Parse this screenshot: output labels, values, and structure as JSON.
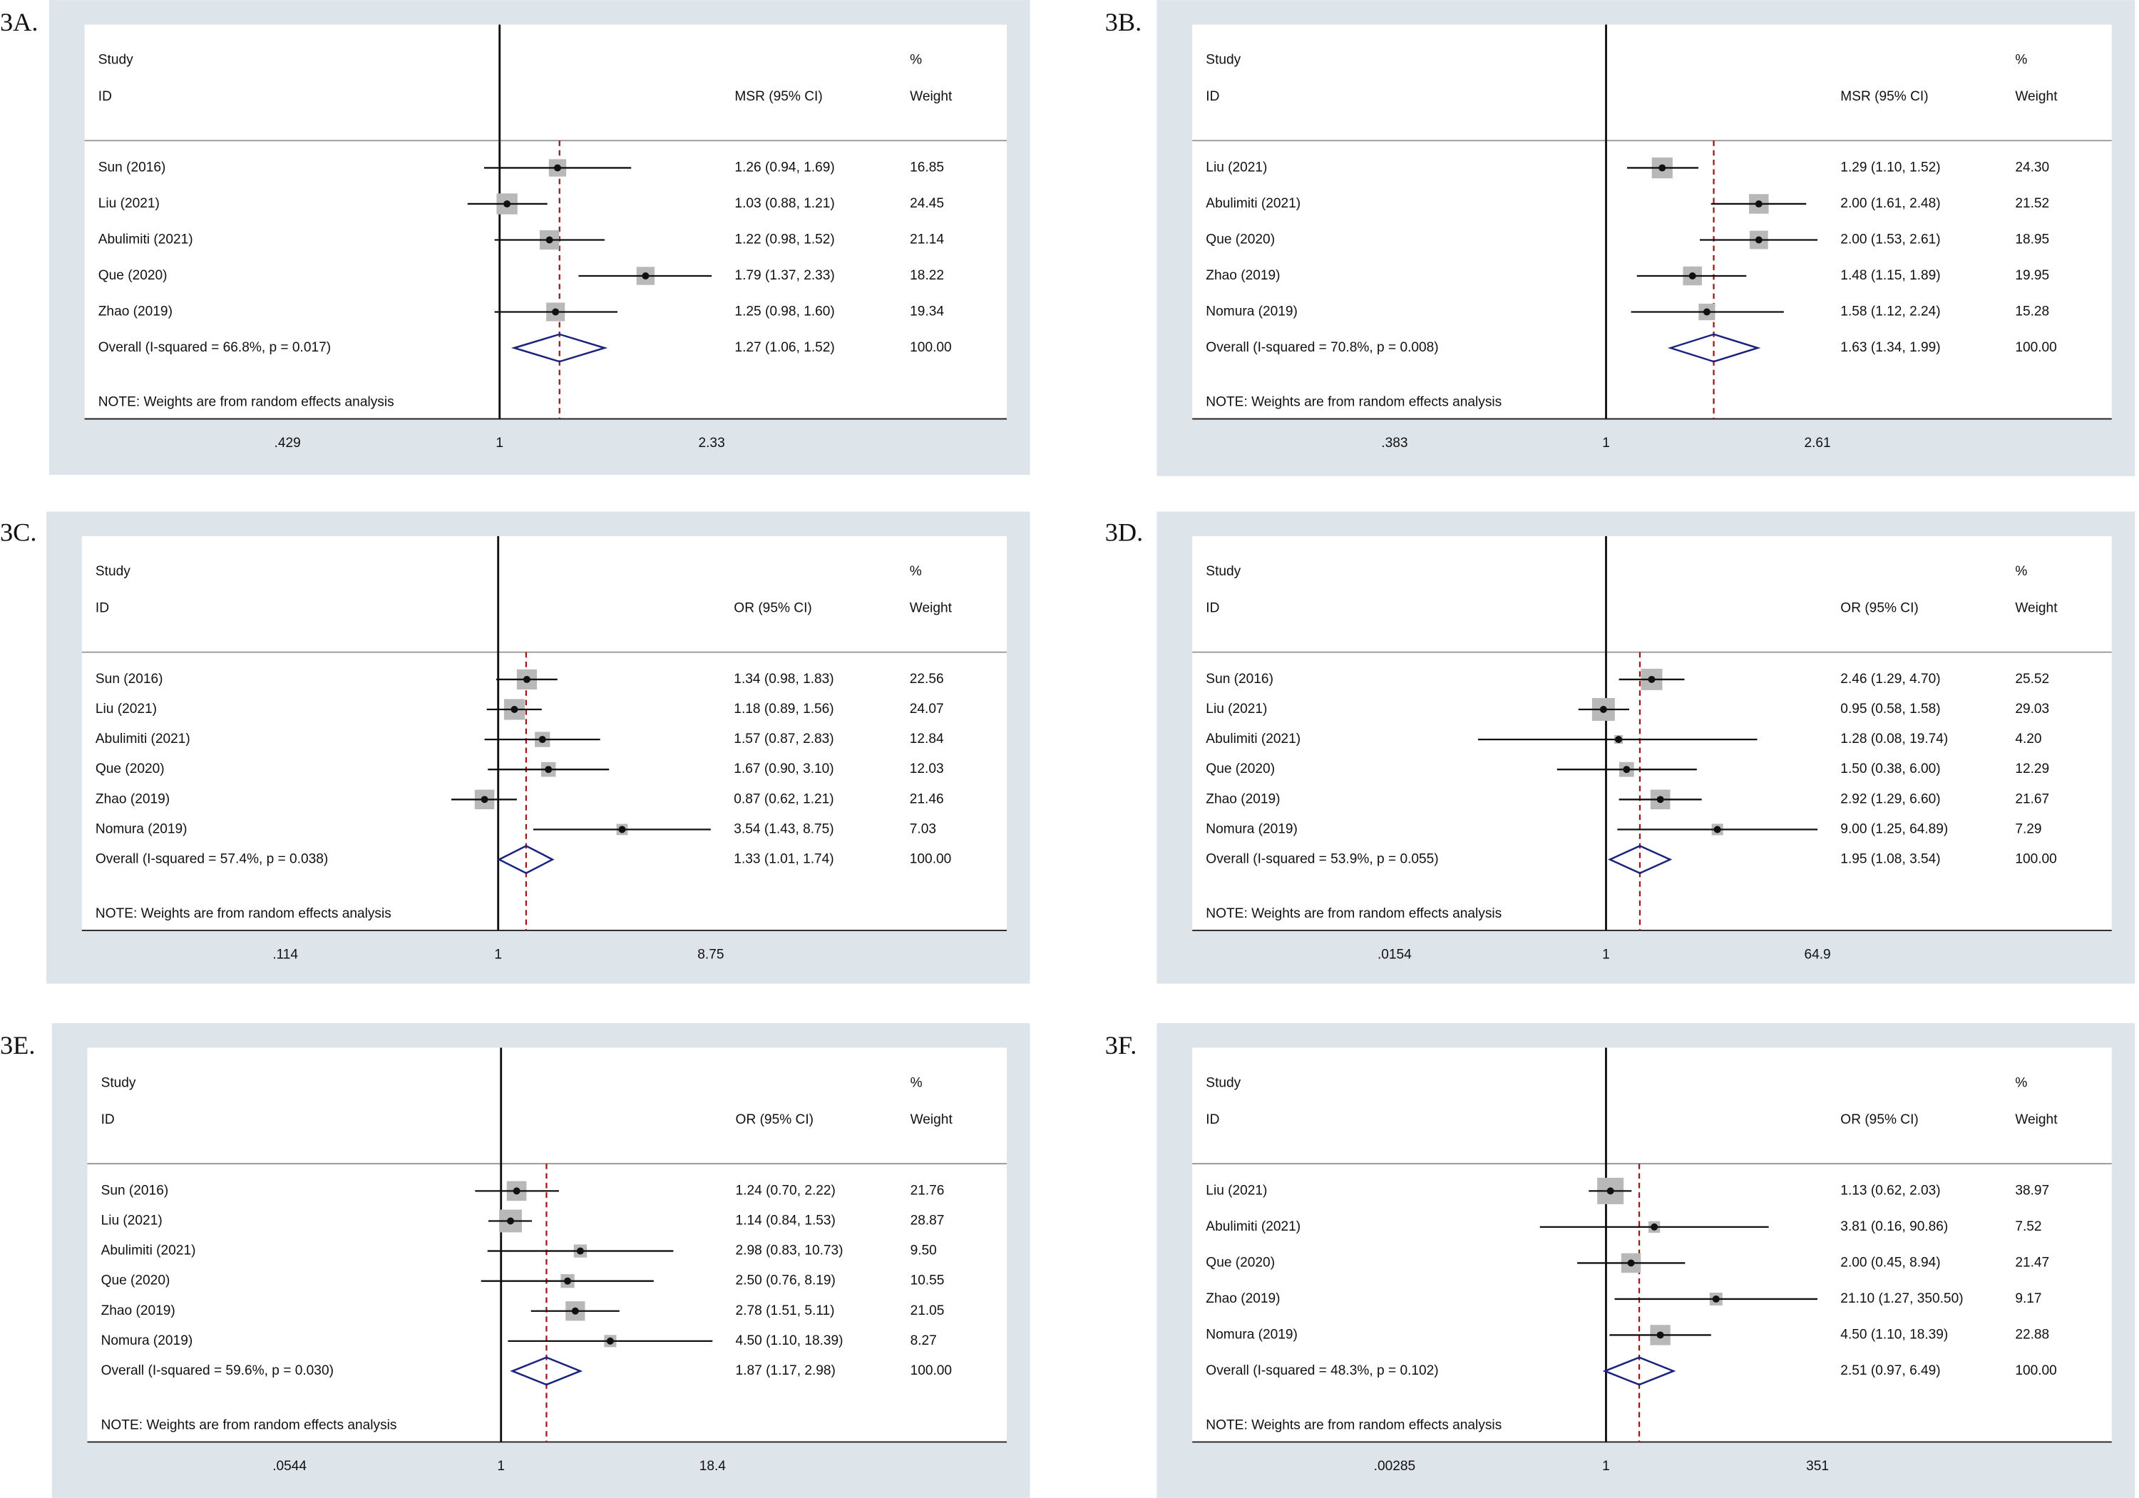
{
  "chart_data": [
    {
      "type": "forest",
      "panel": "3A.",
      "header_study": "Study",
      "header_id": "ID",
      "header_effect": "MSR (95% CI)",
      "header_pct": "%",
      "header_weight": "Weight",
      "categories": [
        "Sun (2016)",
        "Liu (2021)",
        "Abulimiti (2021)",
        "Que (2020)",
        "Zhao (2019)",
        "Overall  (I-squared = 66.8%, p = 0.017)"
      ],
      "values": [
        1.26,
        1.03,
        1.22,
        1.79,
        1.25,
        1.27
      ],
      "lower": [
        0.94,
        0.88,
        0.98,
        1.37,
        0.98,
        1.06
      ],
      "upper": [
        1.69,
        1.21,
        1.52,
        2.33,
        1.6,
        1.52
      ],
      "value_labels": [
        "1.26 (0.94, 1.69)",
        "1.03 (0.88, 1.21)",
        "1.22 (0.98, 1.52)",
        "1.79 (1.37, 2.33)",
        "1.25 (0.98, 1.60)",
        "1.27 (1.06, 1.52)"
      ],
      "weights": [
        16.85,
        24.45,
        21.14,
        18.22,
        19.34,
        100
      ],
      "weight_labels": [
        "16.85",
        "24.45",
        "21.14",
        "18.22",
        "19.34",
        "100.00"
      ],
      "note": "NOTE: Weights are from random effects analysis",
      "log_scale": true,
      "xlim": [
        0.429,
        2.33
      ],
      "xticks": [
        {
          "value": 0.429,
          "label": ".429"
        },
        1,
        2.33
      ]
    },
    {
      "type": "forest",
      "panel": "3B.",
      "header_study": "Study",
      "header_id": "ID",
      "header_effect": "MSR (95% CI)",
      "header_pct": "%",
      "header_weight": "Weight",
      "categories": [
        "Liu (2021)",
        "Abulimiti (2021)",
        "Que (2020)",
        "Zhao (2019)",
        "Nomura (2019)",
        "Overall  (I-squared = 70.8%, p = 0.008)"
      ],
      "values": [
        1.29,
        2,
        2,
        1.48,
        1.58,
        1.63
      ],
      "lower": [
        1.1,
        1.61,
        1.53,
        1.15,
        1.12,
        1.34
      ],
      "upper": [
        1.52,
        2.48,
        2.61,
        1.89,
        2.24,
        1.99
      ],
      "value_labels": [
        "1.29 (1.10, 1.52)",
        "2.00 (1.61, 2.48)",
        "2.00 (1.53, 2.61)",
        "1.48 (1.15, 1.89)",
        "1.58 (1.12, 2.24)",
        "1.63 (1.34, 1.99)"
      ],
      "weights": [
        24.3,
        21.52,
        18.95,
        19.95,
        15.28,
        100
      ],
      "weight_labels": [
        "24.30",
        "21.52",
        "18.95",
        "19.95",
        "15.28",
        "100.00"
      ],
      "note": "NOTE: Weights are from random effects analysis",
      "log_scale": true,
      "xlim": [
        0.383,
        2.61
      ],
      "xticks": [
        {
          "value": 0.383,
          "label": ".383"
        },
        1,
        2.61
      ]
    },
    {
      "type": "forest",
      "panel": "3C.",
      "header_study": "Study",
      "header_id": "ID",
      "header_effect": "OR (95% CI)",
      "header_pct": "%",
      "header_weight": "Weight",
      "categories": [
        "Sun (2016)",
        "Liu (2021)",
        "Abulimiti (2021)",
        "Que (2020)",
        "Zhao (2019)",
        "Nomura (2019)",
        "Overall  (I-squared = 57.4%, p = 0.038)"
      ],
      "values": [
        1.34,
        1.18,
        1.57,
        1.67,
        0.87,
        3.54,
        1.33
      ],
      "lower": [
        0.98,
        0.89,
        0.87,
        0.9,
        0.62,
        1.43,
        1.01
      ],
      "upper": [
        1.83,
        1.56,
        2.83,
        3.1,
        1.21,
        8.75,
        1.74
      ],
      "value_labels": [
        "1.34 (0.98, 1.83)",
        "1.18 (0.89, 1.56)",
        "1.57 (0.87, 2.83)",
        "1.67 (0.90, 3.10)",
        "0.87 (0.62, 1.21)",
        "3.54 (1.43, 8.75)",
        "1.33 (1.01, 1.74)"
      ],
      "weights": [
        22.56,
        24.07,
        12.84,
        12.03,
        21.46,
        7.03,
        100
      ],
      "weight_labels": [
        "22.56",
        "24.07",
        "12.84",
        "12.03",
        "21.46",
        "7.03",
        "100.00"
      ],
      "note": "NOTE: Weights are from random effects analysis",
      "log_scale": true,
      "xlim": [
        0.114,
        8.75
      ],
      "xticks": [
        {
          "value": 0.114,
          "label": ".114"
        },
        1,
        8.75
      ]
    },
    {
      "type": "forest",
      "panel": "3D.",
      "header_study": "Study",
      "header_id": "ID",
      "header_effect": "OR (95% CI)",
      "header_pct": "%",
      "header_weight": "Weight",
      "categories": [
        "Sun (2016)",
        "Liu (2021)",
        "Abulimiti (2021)",
        "Que (2020)",
        "Zhao (2019)",
        "Nomura (2019)",
        "Overall  (I-squared = 53.9%, p = 0.055)"
      ],
      "values": [
        2.46,
        0.95,
        1.28,
        1.5,
        2.92,
        9,
        1.95
      ],
      "lower": [
        1.29,
        0.58,
        0.08,
        0.38,
        1.29,
        1.25,
        1.08
      ],
      "upper": [
        4.7,
        1.58,
        19.74,
        6,
        6.6,
        64.89,
        3.54
      ],
      "value_labels": [
        "2.46 (1.29, 4.70)",
        "0.95 (0.58, 1.58)",
        "1.28 (0.08, 19.74)",
        "1.50 (0.38, 6.00)",
        "2.92 (1.29, 6.60)",
        "9.00 (1.25, 64.89)",
        "1.95 (1.08, 3.54)"
      ],
      "weights": [
        25.52,
        29.03,
        4.2,
        12.29,
        21.67,
        7.29,
        100
      ],
      "weight_labels": [
        "25.52",
        "29.03",
        "4.20",
        "12.29",
        "21.67",
        "7.29",
        "100.00"
      ],
      "note": "NOTE: Weights are from random effects analysis",
      "log_scale": true,
      "xlim": [
        0.0154,
        64.9
      ],
      "xticks": [
        {
          "value": 0.0154,
          "label": ".0154"
        },
        1,
        64.9
      ]
    },
    {
      "type": "forest",
      "panel": "3E.",
      "header_study": "Study",
      "header_id": "ID",
      "header_effect": "OR (95% CI)",
      "header_pct": "%",
      "header_weight": "Weight",
      "categories": [
        "Sun (2016)",
        "Liu (2021)",
        "Abulimiti (2021)",
        "Que (2020)",
        "Zhao (2019)",
        "Nomura (2019)",
        "Overall  (I-squared = 59.6%, p = 0.030)"
      ],
      "values": [
        1.24,
        1.14,
        2.98,
        2.5,
        2.78,
        4.5,
        1.87
      ],
      "lower": [
        0.7,
        0.84,
        0.83,
        0.76,
        1.51,
        1.1,
        1.17
      ],
      "upper": [
        2.22,
        1.53,
        10.73,
        8.19,
        5.11,
        18.39,
        2.98
      ],
      "value_labels": [
        "1.24 (0.70, 2.22)",
        "1.14 (0.84, 1.53)",
        "2.98 (0.83, 10.73)",
        "2.50 (0.76, 8.19)",
        "2.78 (1.51, 5.11)",
        "4.50 (1.10, 18.39)",
        "1.87 (1.17, 2.98)"
      ],
      "weights": [
        21.76,
        28.87,
        9.5,
        10.55,
        21.05,
        8.27,
        100
      ],
      "weight_labels": [
        "21.76",
        "28.87",
        "9.50",
        "10.55",
        "21.05",
        "8.27",
        "100.00"
      ],
      "note": "NOTE: Weights are from random effects analysis",
      "log_scale": true,
      "xlim": [
        0.0544,
        18.4
      ],
      "xticks": [
        {
          "value": 0.0544,
          "label": ".0544"
        },
        1,
        18.4
      ]
    },
    {
      "type": "forest",
      "panel": "3F.",
      "header_study": "Study",
      "header_id": "ID",
      "header_effect": "OR (95% CI)",
      "header_pct": "%",
      "header_weight": "Weight",
      "categories": [
        "Liu (2021)",
        "Abulimiti (2021)",
        "Que (2020)",
        "Zhao (2019)",
        "Nomura (2019)",
        "Overall  (I-squared = 48.3%, p = 0.102)"
      ],
      "values": [
        1.13,
        3.81,
        2,
        21.1,
        4.5,
        2.51
      ],
      "lower": [
        0.62,
        0.16,
        0.45,
        1.27,
        1.1,
        0.97
      ],
      "upper": [
        2.03,
        90.86,
        8.94,
        350.5,
        18.39,
        6.49
      ],
      "value_labels": [
        "1.13 (0.62, 2.03)",
        "3.81 (0.16, 90.86)",
        "2.00 (0.45, 8.94)",
        "21.10 (1.27, 350.50)",
        "4.50 (1.10, 18.39)",
        "2.51 (0.97, 6.49)"
      ],
      "weights": [
        38.97,
        7.52,
        21.47,
        9.17,
        22.88,
        100
      ],
      "weight_labels": [
        "38.97",
        "7.52",
        "21.47",
        "9.17",
        "22.88",
        "100.00"
      ],
      "note": "NOTE: Weights are from random effects analysis",
      "log_scale": true,
      "xlim": [
        0.00285,
        351
      ],
      "xticks": [
        {
          "value": 0.00285,
          "label": ".00285"
        },
        1,
        351
      ]
    }
  ]
}
